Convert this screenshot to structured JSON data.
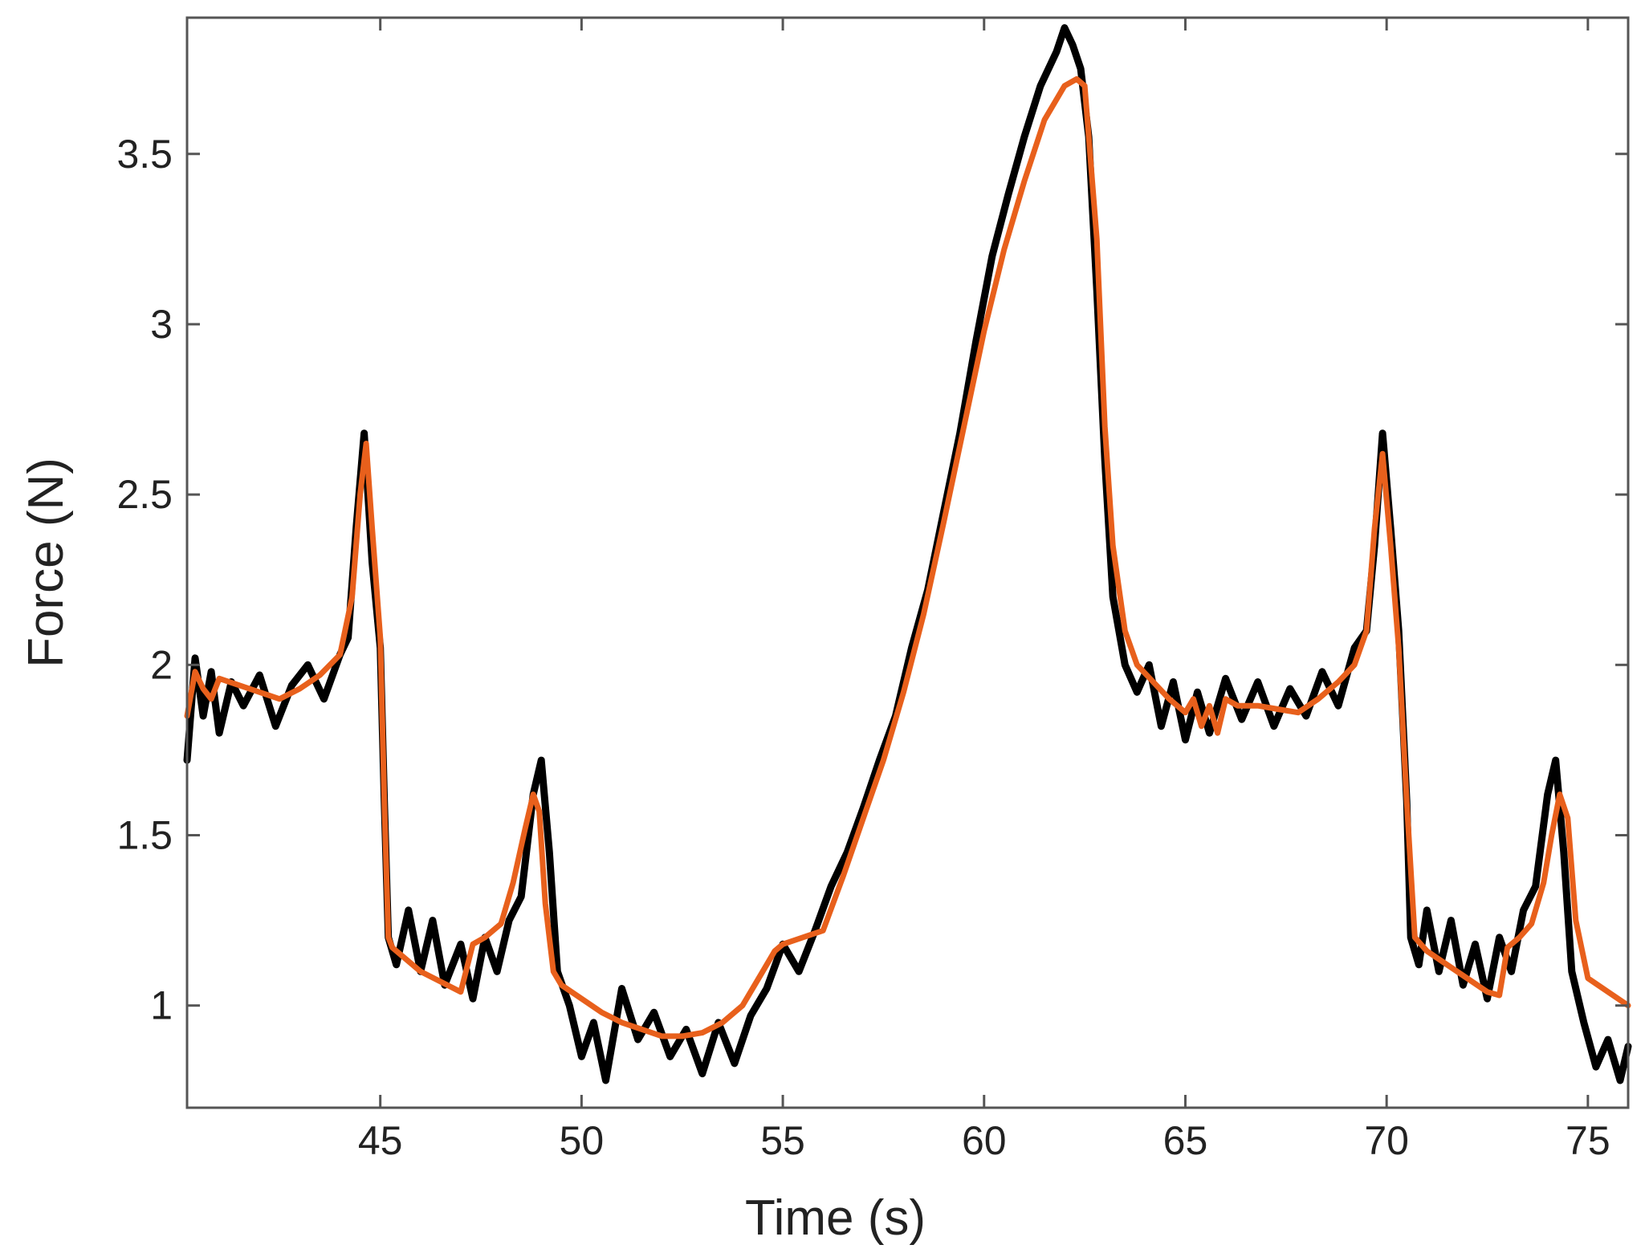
{
  "chart_data": {
    "type": "line",
    "title": "",
    "xlabel": "Time (s)",
    "ylabel": "Force (N)",
    "xlim": [
      40.2,
      76
    ],
    "ylim": [
      0.7,
      3.9
    ],
    "xticks": [
      45,
      50,
      55,
      60,
      65,
      70,
      75
    ],
    "yticks": [
      1,
      1.5,
      2,
      2.5,
      3,
      3.5
    ],
    "xtick_labels": [
      "45",
      "50",
      "55",
      "60",
      "65",
      "70",
      "75"
    ],
    "ytick_labels": [
      "1",
      "1.5",
      "2",
      "2.5",
      "3",
      "3.5"
    ],
    "grid": false,
    "legend": "none",
    "series": [
      {
        "style": "measured, noisy",
        "color": "#000000",
        "x": [
          40.2,
          40.4,
          40.6,
          40.8,
          41.0,
          41.3,
          41.6,
          42.0,
          42.4,
          42.8,
          43.2,
          43.6,
          44.0,
          44.2,
          44.4,
          44.6,
          44.8,
          45.0,
          45.1,
          45.2,
          45.4,
          45.7,
          46.0,
          46.3,
          46.6,
          47.0,
          47.3,
          47.6,
          47.9,
          48.2,
          48.5,
          48.8,
          49.0,
          49.2,
          49.4,
          49.7,
          50.0,
          50.3,
          50.6,
          51.0,
          51.4,
          51.8,
          52.2,
          52.6,
          53.0,
          53.4,
          53.8,
          54.2,
          54.6,
          55.0,
          55.4,
          55.8,
          56.2,
          56.6,
          57.0,
          57.4,
          57.8,
          58.2,
          58.6,
          59.0,
          59.4,
          59.8,
          60.2,
          60.6,
          61.0,
          61.4,
          61.8,
          62.0,
          62.2,
          62.4,
          62.6,
          62.8,
          63.0,
          63.2,
          63.5,
          63.8,
          64.1,
          64.4,
          64.7,
          65.0,
          65.3,
          65.6,
          66.0,
          66.4,
          66.8,
          67.2,
          67.6,
          68.0,
          68.4,
          68.8,
          69.2,
          69.5,
          69.7,
          69.9,
          70.1,
          70.3,
          70.5,
          70.6,
          70.8,
          71.0,
          71.3,
          71.6,
          71.9,
          72.2,
          72.5,
          72.8,
          73.1,
          73.4,
          73.7,
          74.0,
          74.2,
          74.4,
          74.6,
          74.9,
          75.2,
          75.5,
          75.8,
          76.0
        ],
        "y": [
          1.72,
          2.02,
          1.85,
          1.98,
          1.8,
          1.95,
          1.88,
          1.97,
          1.82,
          1.94,
          2.0,
          1.9,
          2.03,
          2.08,
          2.4,
          2.68,
          2.3,
          2.05,
          1.6,
          1.2,
          1.12,
          1.28,
          1.1,
          1.25,
          1.06,
          1.18,
          1.02,
          1.2,
          1.1,
          1.25,
          1.32,
          1.62,
          1.72,
          1.45,
          1.1,
          1.0,
          0.85,
          0.95,
          0.78,
          1.05,
          0.9,
          0.98,
          0.85,
          0.93,
          0.8,
          0.95,
          0.83,
          0.97,
          1.05,
          1.18,
          1.1,
          1.22,
          1.35,
          1.45,
          1.58,
          1.72,
          1.85,
          2.05,
          2.22,
          2.45,
          2.68,
          2.95,
          3.2,
          3.38,
          3.55,
          3.7,
          3.8,
          3.87,
          3.82,
          3.75,
          3.55,
          3.1,
          2.6,
          2.2,
          2.0,
          1.92,
          2.0,
          1.82,
          1.95,
          1.78,
          1.92,
          1.8,
          1.96,
          1.84,
          1.95,
          1.82,
          1.93,
          1.85,
          1.98,
          1.88,
          2.05,
          2.1,
          2.35,
          2.68,
          2.4,
          2.1,
          1.6,
          1.2,
          1.12,
          1.28,
          1.1,
          1.25,
          1.06,
          1.18,
          1.02,
          1.2,
          1.1,
          1.28,
          1.35,
          1.62,
          1.72,
          1.45,
          1.1,
          0.95,
          0.82,
          0.9,
          0.78,
          0.88
        ]
      },
      {
        "style": "smoothed fit",
        "color": "#e8601c",
        "x": [
          40.2,
          40.4,
          40.6,
          40.8,
          41.0,
          41.5,
          42.0,
          42.5,
          43.0,
          43.5,
          44.0,
          44.3,
          44.5,
          44.65,
          44.8,
          45.0,
          45.1,
          45.2,
          45.3,
          45.6,
          46.0,
          46.5,
          47.0,
          47.3,
          47.6,
          48.0,
          48.3,
          48.6,
          48.8,
          48.95,
          49.1,
          49.3,
          49.5,
          50.0,
          50.5,
          51.0,
          51.5,
          52.0,
          52.5,
          53.0,
          53.5,
          54.0,
          54.5,
          54.8,
          55.0,
          55.5,
          56.0,
          56.5,
          57.0,
          57.5,
          58.0,
          58.5,
          59.0,
          59.5,
          60.0,
          60.5,
          61.0,
          61.5,
          62.0,
          62.3,
          62.5,
          62.8,
          63.0,
          63.2,
          63.5,
          63.8,
          64.2,
          64.6,
          65.0,
          65.2,
          65.4,
          65.6,
          65.8,
          66.0,
          66.3,
          66.8,
          67.3,
          67.8,
          68.3,
          68.8,
          69.2,
          69.5,
          69.7,
          69.9,
          70.1,
          70.3,
          70.5,
          70.7,
          71.0,
          71.5,
          72.0,
          72.5,
          72.8,
          73.0,
          73.3,
          73.6,
          73.9,
          74.1,
          74.3,
          74.5,
          74.7,
          75.0,
          75.5,
          76.0
        ],
        "y": [
          1.85,
          1.98,
          1.93,
          1.9,
          1.96,
          1.94,
          1.92,
          1.9,
          1.93,
          1.97,
          2.03,
          2.2,
          2.5,
          2.65,
          2.4,
          2.08,
          1.6,
          1.2,
          1.17,
          1.14,
          1.1,
          1.07,
          1.04,
          1.18,
          1.2,
          1.24,
          1.36,
          1.52,
          1.62,
          1.57,
          1.3,
          1.1,
          1.06,
          1.02,
          0.98,
          0.95,
          0.93,
          0.91,
          0.91,
          0.92,
          0.95,
          1.0,
          1.1,
          1.16,
          1.18,
          1.2,
          1.22,
          1.38,
          1.55,
          1.72,
          1.92,
          2.15,
          2.42,
          2.7,
          2.98,
          3.22,
          3.42,
          3.6,
          3.7,
          3.72,
          3.7,
          3.25,
          2.7,
          2.35,
          2.1,
          2.0,
          1.95,
          1.9,
          1.86,
          1.9,
          1.82,
          1.88,
          1.8,
          1.9,
          1.88,
          1.88,
          1.87,
          1.86,
          1.9,
          1.95,
          2.0,
          2.1,
          2.4,
          2.62,
          2.35,
          2.05,
          1.6,
          1.2,
          1.16,
          1.12,
          1.08,
          1.04,
          1.03,
          1.17,
          1.2,
          1.24,
          1.36,
          1.5,
          1.62,
          1.55,
          1.25,
          1.08,
          1.04,
          1.0
        ]
      }
    ]
  }
}
